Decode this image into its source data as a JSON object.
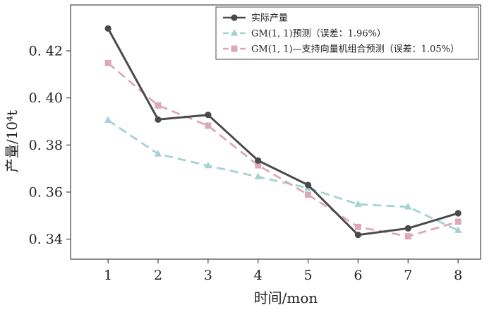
{
  "chart_data": {
    "type": "line",
    "title": "",
    "xlabel": "时间/mon",
    "ylabel": "产量/10⁴t",
    "x": [
      1,
      2,
      3,
      4,
      5,
      6,
      7,
      8
    ],
    "xlim": [
      0.25,
      8.45
    ],
    "ylim": [
      0.3315,
      0.4395
    ],
    "yticks": [
      0.34,
      0.36,
      0.38,
      0.4,
      0.42
    ],
    "ytick_labels": [
      "0. 34",
      "0. 36",
      "0. 38",
      "0. 40",
      "0. 42"
    ],
    "xtick_labels": [
      "1",
      "2",
      "3",
      "4",
      "5",
      "6",
      "7",
      "8"
    ],
    "grid": false,
    "legend_position": "top-right",
    "series": [
      {
        "name": "实际产量",
        "values": [
          0.4295,
          0.3908,
          0.3928,
          0.3734,
          0.363,
          0.3418,
          0.3446,
          0.351
        ],
        "color": "#4a4a4a",
        "marker": "circle",
        "line_style": "solid"
      },
      {
        "name": "GM(1, 1)预测（误差：1.96%）",
        "values": [
          0.3905,
          0.3762,
          0.3712,
          0.3665,
          0.3617,
          0.3548,
          0.3537,
          0.3437
        ],
        "color": "#a3d3d1",
        "marker": "triangle",
        "line_style": "dashed"
      },
      {
        "name": "GM(1, 1)—支持向量机组合预测（误差：1.05%）",
        "values": [
          0.4148,
          0.3968,
          0.3882,
          0.3714,
          0.3589,
          0.3452,
          0.3412,
          0.3474
        ],
        "color": "#dcaab6",
        "marker": "square",
        "line_style": "dashed"
      }
    ]
  }
}
